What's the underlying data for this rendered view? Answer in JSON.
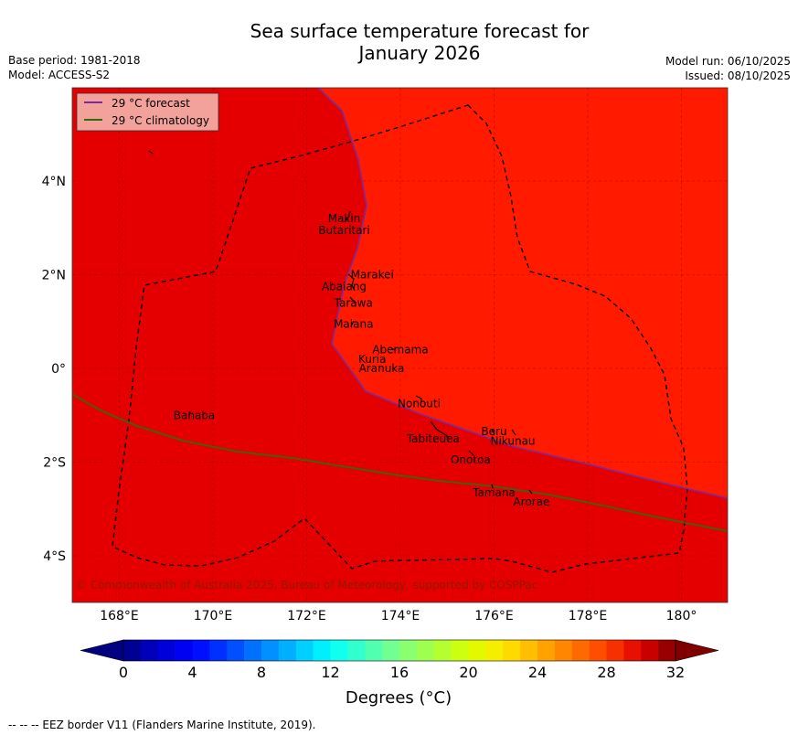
{
  "header": {
    "title_line1": "Sea surface temperature forecast for",
    "title_line2": "January 2026",
    "base_period": "Base period: 1981-2018",
    "model": "Model: ACCESS-S2",
    "model_run": "Model run: 06/10/2025",
    "issued": "Issued: 08/10/2025"
  },
  "map": {
    "legend": {
      "forecast_label": "29 °C  forecast",
      "climatology_label": "29 °C  climatology",
      "forecast_color": "#7b2a9e",
      "climatology_color": "#2e6a12"
    },
    "colors": {
      "warm_region": "#ff1a00",
      "cool_region": "#e40000",
      "eez_border": "#000000"
    },
    "copyright": "© Commonwealth of Australia 2025, Bureau of Meteorology, supported by COSPPac",
    "x_ticks": [
      "168°E",
      "170°E",
      "172°E",
      "174°E",
      "176°E",
      "178°E",
      "180°"
    ],
    "y_ticks": [
      "4°N",
      "2°N",
      "0°",
      "2°S",
      "4°S"
    ],
    "places": [
      {
        "name": "Makin",
        "lon": 172.8,
        "lat": 3.2
      },
      {
        "name": "Butaritari",
        "lon": 172.8,
        "lat": 2.95
      },
      {
        "name": "Marakei",
        "lon": 173.4,
        "lat": 2.0
      },
      {
        "name": "Abaiang",
        "lon": 172.8,
        "lat": 1.75
      },
      {
        "name": "Tarawa",
        "lon": 173.0,
        "lat": 1.4
      },
      {
        "name": "Maiana",
        "lon": 173.0,
        "lat": 0.95
      },
      {
        "name": "Abemama",
        "lon": 174.0,
        "lat": 0.4
      },
      {
        "name": "Kuria",
        "lon": 173.4,
        "lat": 0.2
      },
      {
        "name": "Aranuka",
        "lon": 173.6,
        "lat": 0.0
      },
      {
        "name": "Nonouti",
        "lon": 174.4,
        "lat": -0.75
      },
      {
        "name": "Banaba",
        "lon": 169.6,
        "lat": -1.0
      },
      {
        "name": "Beru",
        "lon": 176.0,
        "lat": -1.35
      },
      {
        "name": "Nikunau",
        "lon": 176.4,
        "lat": -1.55
      },
      {
        "name": "Tabiteuea",
        "lon": 174.7,
        "lat": -1.5
      },
      {
        "name": "Onotoa",
        "lon": 175.5,
        "lat": -1.95
      },
      {
        "name": "Tamana",
        "lon": 176.0,
        "lat": -2.65
      },
      {
        "name": "Arorae",
        "lon": 176.8,
        "lat": -2.85
      }
    ],
    "extent": {
      "lon_min": 167.0,
      "lon_max": 181.0,
      "lat_min": -5.0,
      "lat_max": 6.0
    }
  },
  "colorbar": {
    "min": 0,
    "max": 32,
    "step": 1,
    "ticks": [
      "0",
      "4",
      "8",
      "12",
      "16",
      "20",
      "24",
      "28",
      "32"
    ],
    "label": "Degrees (°C)"
  },
  "footer": {
    "eez_note": "--  --  -- EEZ border V11 (Flanders Marine Institute, 2019)."
  }
}
